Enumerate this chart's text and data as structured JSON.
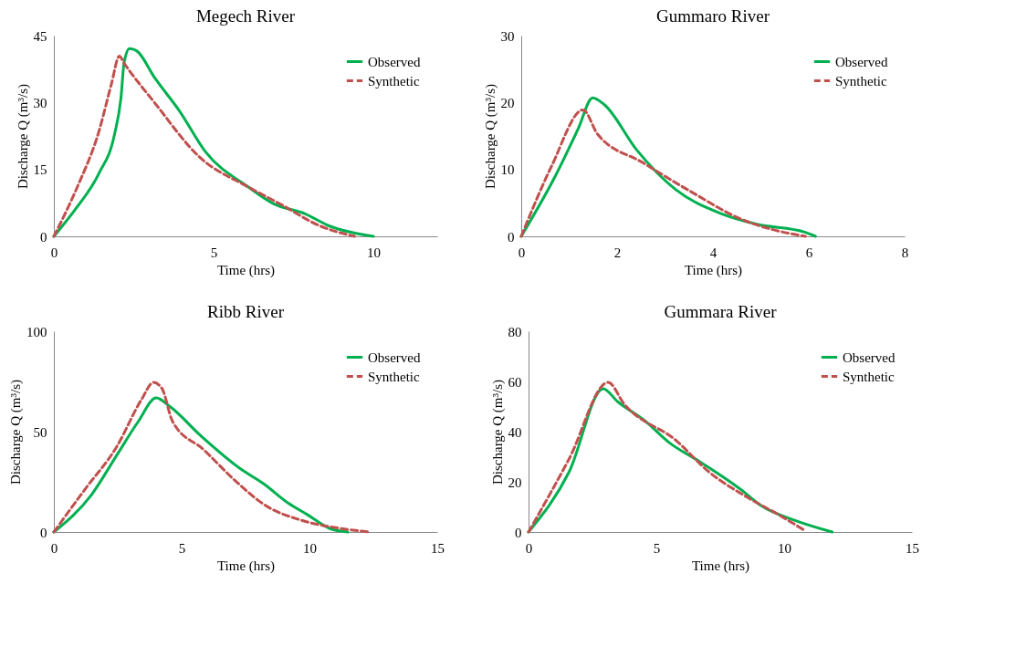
{
  "chart_data": [
    {
      "type": "line",
      "title": "Megech River",
      "xlabel": "Time  (hrs)",
      "ylabel": "Discharge Q (m³/s)",
      "xlim": [
        0,
        12
      ],
      "xticks": [
        0,
        5,
        10
      ],
      "ylim": [
        0,
        45
      ],
      "yticks": [
        0,
        15,
        30,
        45
      ],
      "grid": false,
      "legend": "top right",
      "series": [
        {
          "name": "Observed",
          "color": "#00b050",
          "line_style": "solid",
          "x": [
            0,
            0.73,
            1.41,
            1.9,
            2.1,
            2.2,
            2.37,
            2.59,
            3.17,
            3.95,
            4.73,
            6.1,
            6.88,
            7.85,
            8.63,
            10
          ],
          "values": [
            0,
            6.6,
            14.1,
            22.9,
            31,
            39,
            42.1,
            41.6,
            35.4,
            27.9,
            19.1,
            11,
            7.3,
            5.1,
            2.3,
            0
          ]
        },
        {
          "name": "Synthetic",
          "color": "#c0504d",
          "line_style": "dashed",
          "x": [
            0,
            0.73,
            1.41,
            1.8,
            2.05,
            2.2,
            3.17,
            4.54,
            6.1,
            7.07,
            8.34,
            9.41
          ],
          "values": [
            0,
            11,
            23.5,
            34.1,
            40.4,
            38.8,
            29.8,
            17.9,
            11,
            7.3,
            2.3,
            0
          ]
        }
      ]
    },
    {
      "type": "line",
      "title": "Gummaro River",
      "xlabel": "Time (hrs)",
      "ylabel": "Discharge Q (m³/s)",
      "xlim": [
        0,
        8
      ],
      "xticks": [
        0,
        2,
        4,
        6,
        8
      ],
      "ylim": [
        0,
        30
      ],
      "yticks": [
        0,
        10,
        20,
        30
      ],
      "grid": false,
      "legend": "top right",
      "series": [
        {
          "name": "Observed",
          "color": "#00b050",
          "line_style": "solid",
          "x": [
            0,
            0.71,
            1.19,
            1.49,
            1.73,
            2.41,
            3.22,
            4.17,
            4.92,
            5.93,
            6.14
          ],
          "values": [
            0,
            9,
            16.1,
            20.7,
            19.7,
            12.9,
            7,
            3.4,
            1.8,
            0.6,
            0
          ]
        },
        {
          "name": "Synthetic",
          "color": "#c0504d",
          "line_style": "dashed",
          "x": [
            0,
            0.64,
            1.29,
            1.59,
            2.54,
            3.56,
            4.58,
            5.25,
            5.93
          ],
          "values": [
            0,
            10.6,
            18.9,
            15.3,
            11,
            6.6,
            2.6,
            1,
            0
          ]
        }
      ]
    },
    {
      "type": "line",
      "title": "Ribb River",
      "xlabel": "Time (hrs)",
      "ylabel": "Discharge Q (m³/s)",
      "xlim": [
        0,
        15
      ],
      "xticks": [
        0,
        5,
        10,
        15
      ],
      "ylim": [
        0,
        100
      ],
      "yticks": [
        0,
        50,
        100
      ],
      "grid": false,
      "legend": "top right",
      "series": [
        {
          "name": "Observed",
          "color": "#00b050",
          "line_style": "solid",
          "x": [
            0,
            1.47,
            2.45,
            3.3,
            4.0,
            4.53,
            5.75,
            7.34,
            8.2,
            9.18,
            9.91,
            10.8,
            11.5
          ],
          "values": [
            0,
            18.5,
            38,
            55,
            66.8,
            62.6,
            47.9,
            31.1,
            24.1,
            14.3,
            8.7,
            1.7,
            0
          ]
        },
        {
          "name": "Synthetic",
          "color": "#c0504d",
          "line_style": "dashed",
          "x": [
            0,
            1.22,
            2.45,
            3.43,
            3.9,
            4.22,
            4.65,
            5.87,
            7.1,
            8.32,
            9.67,
            11.26,
            12.4
          ],
          "values": [
            0,
            21.3,
            42.3,
            66,
            74.5,
            71.7,
            54.9,
            40.9,
            25.5,
            12.9,
            5.9,
            1.7,
            0
          ]
        }
      ]
    },
    {
      "type": "line",
      "title": "Gummara River",
      "xlabel": "Time (hrs)",
      "ylabel": "Discharge Q (m³/s)",
      "xlim": [
        0,
        15
      ],
      "xticks": [
        0,
        5,
        10,
        15
      ],
      "ylim": [
        0,
        80
      ],
      "yticks": [
        0,
        20,
        40,
        60,
        80
      ],
      "grid": false,
      "legend": "top right",
      "series": [
        {
          "name": "Observed",
          "color": "#00b050",
          "line_style": "solid",
          "x": [
            0,
            1.59,
            2.92,
            3.49,
            4.51,
            5.53,
            6.67,
            8.32,
            9.08,
            10.48,
            11.88
          ],
          "values": [
            0,
            24,
            57.1,
            51.9,
            44.7,
            35.4,
            28.2,
            16.8,
            10.6,
            4.4,
            0
          ]
        },
        {
          "name": "Synthetic",
          "color": "#c0504d",
          "line_style": "dashed",
          "x": [
            0,
            1.59,
            3.11,
            3.75,
            5.78,
            7.05,
            8.58,
            9.85,
            10.74
          ],
          "values": [
            0,
            29.2,
            59.6,
            50.9,
            36.4,
            24,
            13.7,
            6.5,
            1
          ]
        }
      ]
    }
  ]
}
